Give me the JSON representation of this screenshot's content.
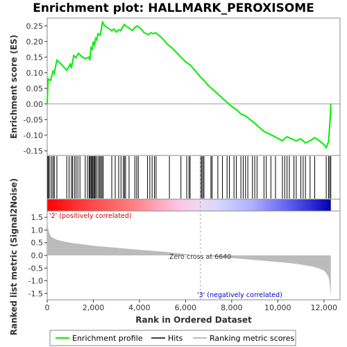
{
  "chart_data": {
    "type": "line",
    "title": "Enrichment plot: HALLMARK_PEROXISOME",
    "panels": {
      "es": {
        "ylabel": "Enrichment score (ES)",
        "ylim": [
          -0.165,
          0.275
        ],
        "yticks": [
          -0.15,
          -0.1,
          -0.05,
          0.0,
          0.05,
          0.1,
          0.15,
          0.2,
          0.25
        ],
        "ytick_labels": [
          "-0.15",
          "-0.10",
          "-0.05",
          "0.00",
          "0.05",
          "0.10",
          "0.15",
          "0.20",
          "0.25"
        ],
        "color": "#00ee00"
      },
      "metric": {
        "ylabel": "Ranked list metric (Signal2Noise)",
        "ylim": [
          -1.75,
          1.75
        ],
        "yticks": [
          -1.5,
          -1.0,
          -0.5,
          0.0,
          0.5,
          1.0,
          1.5
        ],
        "ytick_labels": [
          "-1.5",
          "-1.0",
          "-0.5",
          "0.0",
          "0.5",
          "1.0",
          "1.5"
        ]
      }
    },
    "xlabel": "Rank in Ordered Dataset",
    "xlim": [
      0,
      12700
    ],
    "xticks": [
      0,
      2000,
      4000,
      6000,
      8000,
      10000,
      12000
    ],
    "xtick_labels": [
      "0",
      "2,000",
      "4,000",
      "6,000",
      "8,000",
      "10,000",
      "12,000"
    ],
    "series": [
      {
        "name": "Enrichment profile",
        "x": [
          0,
          40,
          150,
          250,
          300,
          420,
          500,
          600,
          850,
          1000,
          1050,
          1150,
          1250,
          1350,
          1500,
          1650,
          1800,
          1850,
          1900,
          1950,
          2000,
          2050,
          2100,
          2150,
          2200,
          2300,
          2350,
          2400,
          2500,
          2700,
          2800,
          2900,
          3000,
          3100,
          3200,
          3250,
          3350,
          3400,
          3550,
          3700,
          3800,
          3900,
          4000,
          4100,
          4200,
          4400,
          4500,
          4600,
          4700,
          4800,
          5000,
          5200,
          5400,
          5600,
          5800,
          6000,
          6200,
          6400,
          6600,
          6800,
          7000,
          7200,
          7500,
          7800,
          8000,
          8200,
          8400,
          8600,
          8800,
          9000,
          9200,
          9400,
          9600,
          9800,
          10000,
          10200,
          10400,
          10600,
          10800,
          11000,
          11200,
          11400,
          11600,
          11800,
          12000,
          12100,
          12200,
          12250,
          12280,
          12300
        ],
        "y": [
          0.0,
          0.08,
          0.075,
          0.105,
          0.098,
          0.14,
          0.135,
          0.128,
          0.108,
          0.128,
          0.115,
          0.155,
          0.148,
          0.162,
          0.152,
          0.145,
          0.15,
          0.14,
          0.18,
          0.175,
          0.2,
          0.19,
          0.21,
          0.205,
          0.225,
          0.22,
          0.24,
          0.262,
          0.25,
          0.24,
          0.235,
          0.24,
          0.23,
          0.238,
          0.235,
          0.245,
          0.255,
          0.25,
          0.243,
          0.235,
          0.245,
          0.25,
          0.245,
          0.238,
          0.228,
          0.222,
          0.228,
          0.225,
          0.228,
          0.222,
          0.21,
          0.192,
          0.18,
          0.165,
          0.15,
          0.135,
          0.125,
          0.108,
          0.09,
          0.075,
          0.058,
          0.045,
          0.025,
          0.005,
          -0.008,
          -0.018,
          -0.032,
          -0.038,
          -0.05,
          -0.062,
          -0.075,
          -0.088,
          -0.095,
          -0.102,
          -0.11,
          -0.118,
          -0.105,
          -0.112,
          -0.118,
          -0.112,
          -0.125,
          -0.118,
          -0.108,
          -0.118,
          -0.13,
          -0.14,
          -0.12,
          -0.07,
          -0.04,
          0.0
        ]
      }
    ],
    "hits": [
      30,
      60,
      120,
      200,
      260,
      310,
      420,
      850,
      950,
      1050,
      1100,
      1180,
      1250,
      1330,
      1420,
      1650,
      1750,
      1820,
      1860,
      1900,
      1940,
      1980,
      2020,
      2060,
      2100,
      2160,
      2230,
      2280,
      2330,
      2380,
      2430,
      2800,
      2950,
      3100,
      3200,
      3300,
      3350,
      3400,
      3550,
      3800,
      3880,
      3950,
      4350,
      4450,
      4550,
      4650,
      4720,
      5300,
      5800,
      6050,
      6150,
      6200,
      6650,
      6700,
      6750,
      6800,
      7100,
      7150,
      7400,
      7600,
      7800,
      7900,
      8100,
      8200,
      8400,
      8500,
      8600,
      8700,
      8900,
      9000,
      9100,
      9400,
      9500,
      9700,
      9900,
      10200,
      10300,
      10400,
      10500,
      10700,
      10800,
      11000,
      11100,
      11200,
      11400,
      11600,
      12100,
      12200,
      12250,
      12300
    ],
    "zero_cross": {
      "rank": 6640,
      "label": "Zero cross at 6640"
    },
    "annotations": {
      "positive": "'2' (positively correlated)",
      "negative": "'3' (negatively correlated)",
      "positive_color": "#cc0000",
      "negative_color": "#0000cc"
    },
    "metric_curve": {
      "x": [
        0,
        30,
        100,
        200,
        400,
        700,
        1000,
        1500,
        2000,
        3000,
        4000,
        5000,
        5300,
        6000,
        6640,
        7000,
        8000,
        9000,
        10000,
        10500,
        11000,
        11500,
        11800,
        12000,
        12100,
        12200,
        12250,
        12300
      ],
      "y": [
        1.6,
        1.1,
        0.85,
        0.72,
        0.62,
        0.55,
        0.5,
        0.44,
        0.38,
        0.3,
        0.22,
        0.15,
        0.12,
        0.05,
        0.0,
        -0.03,
        -0.1,
        -0.18,
        -0.26,
        -0.3,
        -0.36,
        -0.44,
        -0.52,
        -0.6,
        -0.7,
        -0.85,
        -1.1,
        -1.65
      ]
    },
    "legend": {
      "items": [
        {
          "label": "Enrichment profile",
          "color": "#00ee00"
        },
        {
          "label": "Hits",
          "color": "#000000"
        },
        {
          "label": "Ranking metric scores",
          "color": "#bbbbbb"
        }
      ],
      "placement": "bottom"
    }
  }
}
